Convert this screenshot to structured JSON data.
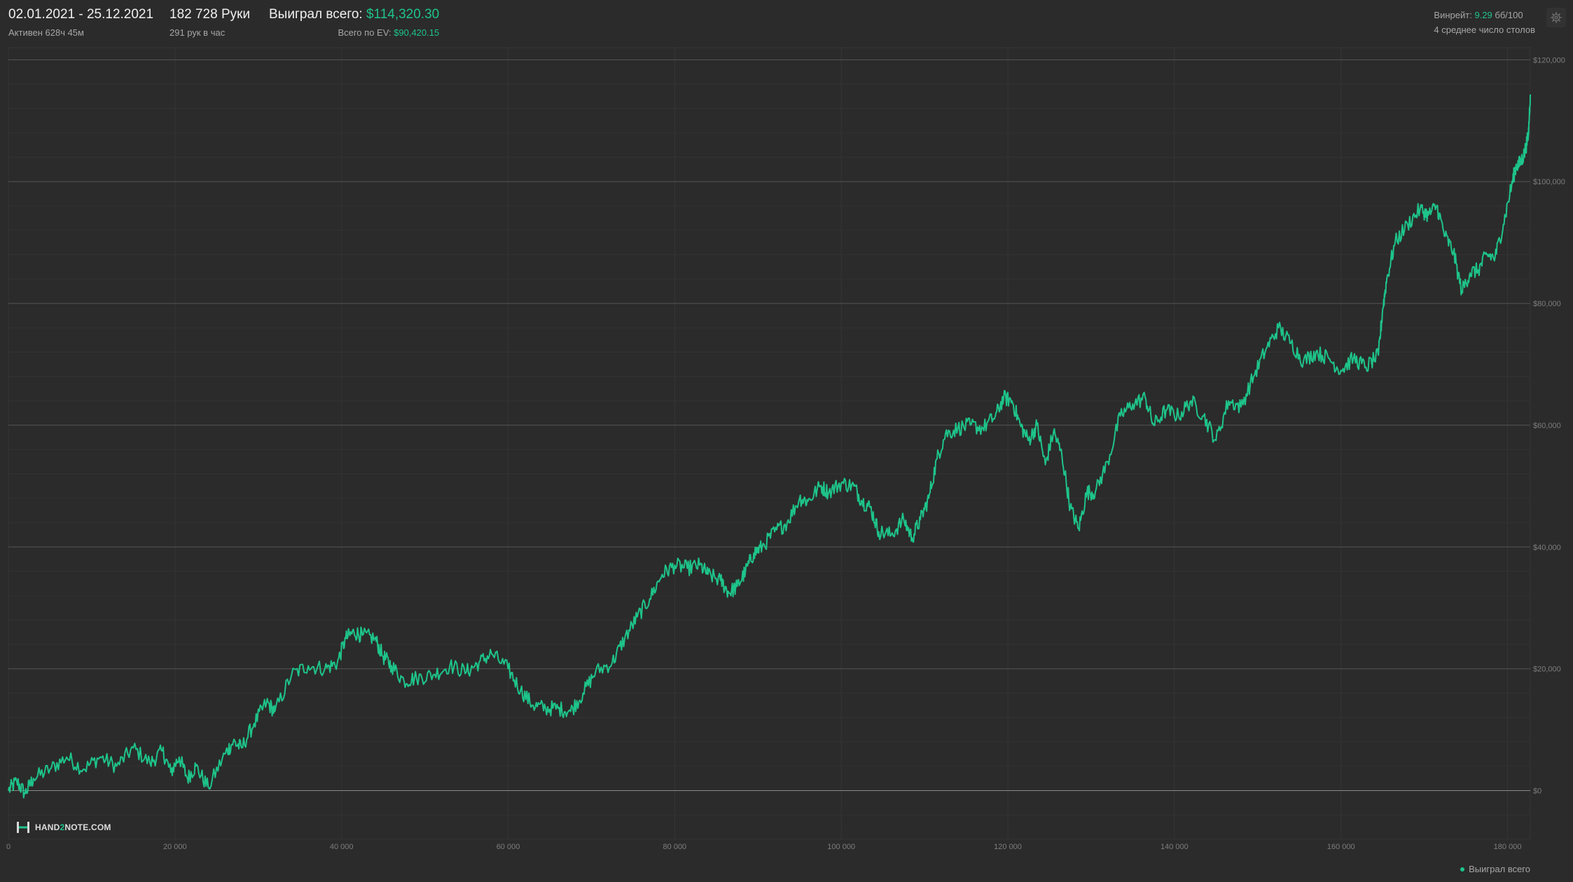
{
  "header": {
    "date_range": "02.01.2021 - 25.12.2021",
    "active_time": "Активен 628ч 45м",
    "hands": "182 728 Руки",
    "hands_per_hour": "291 рук в час",
    "won_total_label": "Выиграл всего:",
    "won_total_value": "$114,320.30",
    "ev_total_label": "Всего по EV:",
    "ev_total_value": "$90,420.15",
    "winrate_label": "Винрейт:",
    "winrate_value": "9.29",
    "winrate_unit": "бб/100",
    "avg_tables": "4 среднее число столов",
    "settings_icon": "gear-icon"
  },
  "brand": {
    "logo_icon": "hand2note-logo-icon",
    "text_prefix": "HAND",
    "text_mid": "2",
    "text_suffix": "NOTE.COM"
  },
  "legend": {
    "series_label": "Выиграл всего"
  },
  "colors": {
    "background": "#2b2b2b",
    "accent": "#1ec48a",
    "grid": "#3a3a3a",
    "grid_major": "#575757"
  },
  "chart_data": {
    "type": "line",
    "xlabel": "",
    "ylabel": "",
    "xlim": [
      0,
      182728
    ],
    "ylim": [
      -8000,
      122000
    ],
    "x_ticks": [
      0,
      20000,
      40000,
      60000,
      80000,
      100000,
      120000,
      140000,
      160000,
      180000
    ],
    "x_tick_labels": [
      "0",
      "20 000",
      "40 000",
      "60 000",
      "80 000",
      "100 000",
      "120 000",
      "140 000",
      "160 000",
      "180 000"
    ],
    "y_ticks": [
      0,
      20000,
      40000,
      60000,
      80000,
      100000,
      120000
    ],
    "y_tick_labels": [
      "$0",
      "$20,000",
      "$40,000",
      "$60,000",
      "$80,000",
      "$100,000",
      "$120,000"
    ],
    "grid": true,
    "legend_position": "bottom-right",
    "series": [
      {
        "name": "Выиграл всего",
        "color": "#1ec48a",
        "x": [
          0,
          1000,
          2000,
          3000,
          5000,
          7000,
          9000,
          11000,
          13000,
          15000,
          17000,
          18500,
          19500,
          20500,
          21500,
          22500,
          24000,
          26000,
          27000,
          28000,
          29500,
          31000,
          32000,
          34000,
          36000,
          38000,
          39500,
          40500,
          41500,
          42500,
          44000,
          45000,
          46000,
          47500,
          49000,
          51000,
          53000,
          55000,
          56500,
          58000,
          60000,
          61500,
          63000,
          64500,
          66000,
          67500,
          69000,
          70500,
          72500,
          74000,
          75500,
          77000,
          78500,
          80000,
          81500,
          83000,
          84000,
          85500,
          86500,
          87500,
          88500,
          89500,
          90500,
          92000,
          93500,
          95000,
          96000,
          97500,
          98500,
          100000,
          101500,
          102500,
          103500,
          104500,
          106000,
          107500,
          108500,
          109500,
          110500,
          111500,
          112500,
          114000,
          115500,
          117000,
          118500,
          119500,
          120500,
          121500,
          122500,
          123500,
          124500,
          125500,
          126500,
          127500,
          128500,
          129500,
          130500,
          132000,
          133500,
          135000,
          136500,
          137500,
          139000,
          140500,
          142000,
          143500,
          145000,
          146500,
          148000,
          149500,
          151000,
          152500,
          154000,
          155500,
          157000,
          158500,
          160000,
          161500,
          163000,
          164500,
          165000,
          165500,
          166500,
          168000,
          169500,
          170500,
          171500,
          172500,
          173500,
          174500,
          175500,
          176500,
          177500,
          178500,
          179500,
          180500,
          181000,
          181500,
          182000,
          182500,
          182728
        ],
        "y": [
          0,
          1500,
          -500,
          2000,
          3500,
          5500,
          3500,
          5500,
          4000,
          7000,
          4500,
          6500,
          3000,
          5500,
          2000,
          4000,
          500,
          6000,
          8000,
          7000,
          11000,
          14500,
          13000,
          19000,
          20500,
          20000,
          21000,
          25000,
          26000,
          25500,
          25000,
          22000,
          20500,
          18000,
          18500,
          19000,
          20500,
          19500,
          21000,
          22500,
          20000,
          16500,
          14000,
          13500,
          13500,
          13000,
          16000,
          19500,
          21000,
          25000,
          28500,
          31500,
          35500,
          37000,
          36500,
          37000,
          35500,
          34500,
          32500,
          33500,
          36000,
          39000,
          40000,
          42500,
          44000,
          48000,
          47500,
          50000,
          49000,
          50500,
          50000,
          47500,
          46500,
          42500,
          42000,
          44500,
          41500,
          44500,
          48000,
          54500,
          58500,
          59500,
          60000,
          59500,
          61500,
          64500,
          64000,
          60000,
          57500,
          60000,
          53500,
          59000,
          55000,
          46500,
          43000,
          49000,
          49000,
          54000,
          61500,
          63500,
          64500,
          60000,
          62500,
          61500,
          64000,
          61500,
          57500,
          64000,
          63000,
          68000,
          72500,
          76000,
          73500,
          70500,
          72000,
          71000,
          69000,
          71000,
          69500,
          71500,
          79000,
          84000,
          90000,
          93000,
          95500,
          94500,
          96000,
          91000,
          88500,
          82000,
          85000,
          85500,
          88000,
          87500,
          93000,
          99500,
          102500,
          103000,
          104500,
          107500,
          114300
        ]
      }
    ]
  }
}
